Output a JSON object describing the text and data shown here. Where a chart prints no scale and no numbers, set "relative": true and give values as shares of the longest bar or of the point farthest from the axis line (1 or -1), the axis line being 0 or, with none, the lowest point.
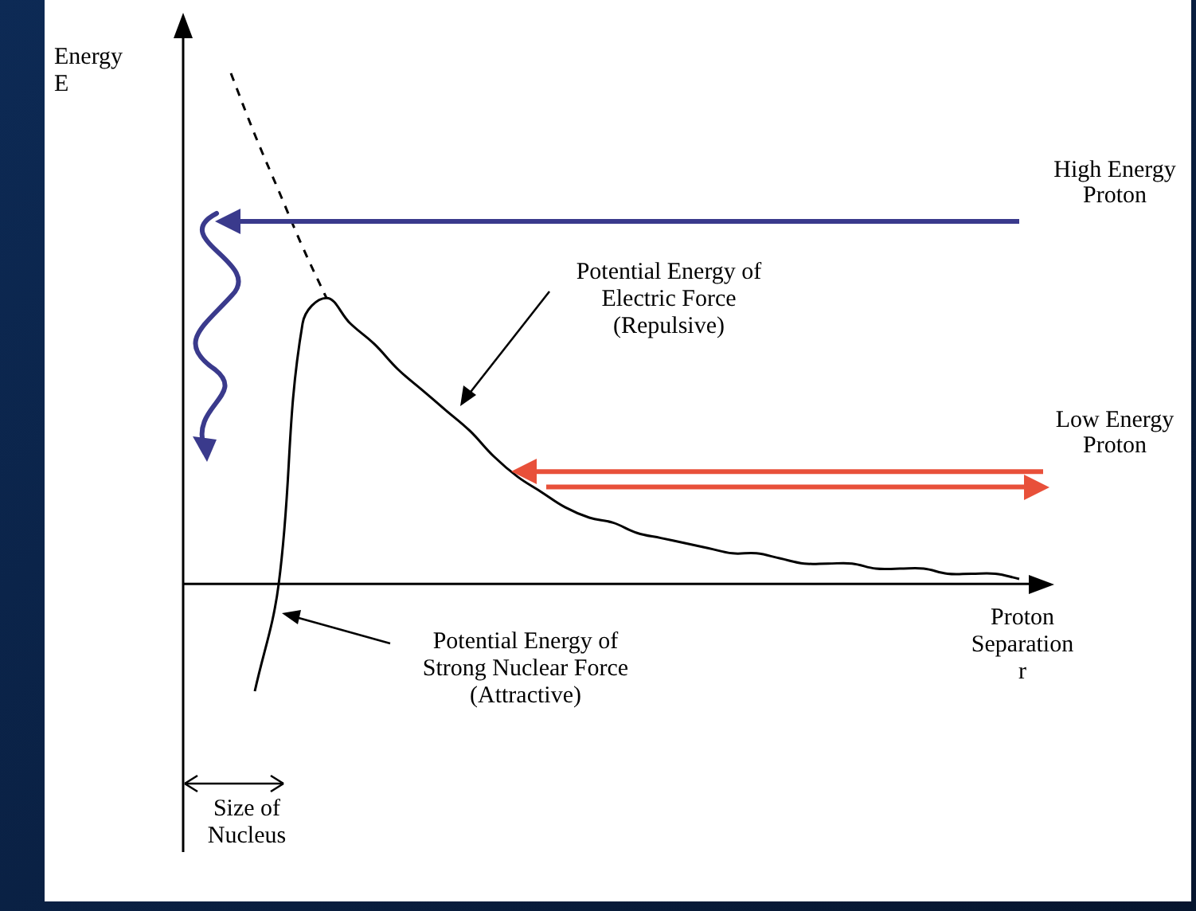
{
  "chart_data": {
    "type": "line",
    "relative": true,
    "xlabel": "Proton\nSeparation\nr",
    "ylabel": "Energy\nE",
    "categories": [
      null,
      null,
      null,
      null,
      null,
      null,
      null,
      null,
      null,
      null,
      null,
      null,
      null,
      null,
      null,
      null,
      null,
      null,
      null,
      null,
      null,
      null,
      null,
      null,
      null,
      null,
      null,
      null,
      null,
      null,
      null,
      null,
      null,
      null,
      null,
      null
    ],
    "series": [
      {
        "color": "#000000",
        "line_style": "solid",
        "values": [
          null,
          null,
          null,
          -0.21,
          0,
          0.51,
          0.56,
          0.51,
          0.47,
          0.42,
          0.38,
          0.34,
          0.3,
          0.25,
          0.21,
          0.18,
          0.15,
          0.13,
          0.12,
          0.1,
          0.09,
          0.08,
          0.07,
          0.06,
          0.06,
          0.05,
          0.04,
          0.04,
          0.04,
          0.03,
          0.03,
          0.03,
          0.02,
          0.02,
          0.02,
          0.01
        ]
      },
      {
        "color": "#000000",
        "line_style": "dashed",
        "values": [
          null,
          null,
          1,
          0.88,
          0.77,
          0.66,
          0.56,
          null,
          null,
          null,
          null,
          null,
          null,
          null,
          null,
          null,
          null,
          null,
          null,
          null,
          null,
          null,
          null,
          null,
          null,
          null,
          null,
          null,
          null,
          null,
          null,
          null,
          null,
          null,
          null,
          null
        ]
      }
    ],
    "ref_lines": [
      {
        "axis": "y",
        "value": 0.71,
        "label": "High Energy\nProton",
        "color": "#3a3a8c"
      },
      {
        "axis": "y",
        "value": 0.22,
        "label": "Low Energy\nProton",
        "color": "#e8503a"
      },
      {
        "axis": "y",
        "value": 0.19,
        "color": "#e8503a"
      }
    ],
    "annotations": [
      "Potential Energy of\nElectric Force\n(Repulsive)",
      "Potential Energy of\nStrong Nuclear Force\n(Attractive)",
      "Size of\nNucleus"
    ],
    "grid": false,
    "legend": false,
    "marker": "none"
  }
}
